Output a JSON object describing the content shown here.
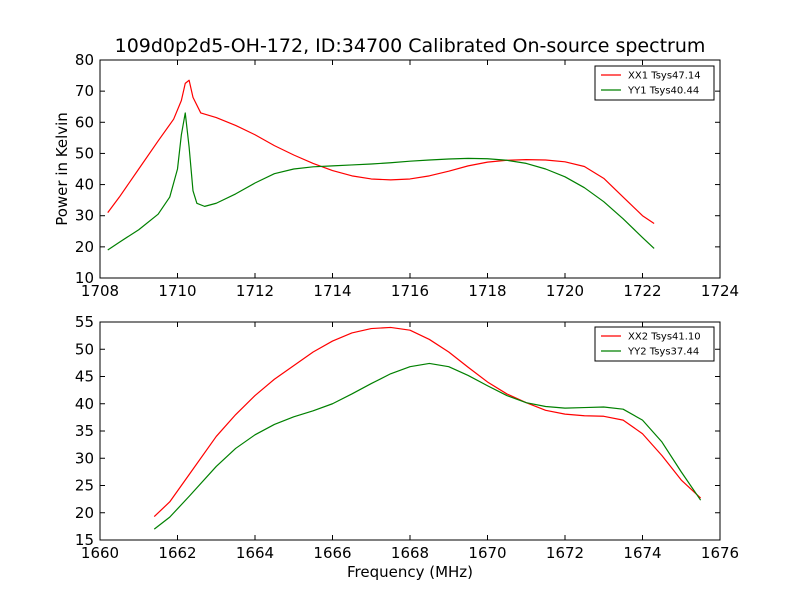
{
  "figure": {
    "title": "109d0p2d5-OH-172, ID:34700 Calibrated On-source spectrum",
    "ylabel": "Power in Kelvin",
    "xlabel": "Frequency (MHz)"
  },
  "chart_data": [
    {
      "type": "line",
      "title": "109d0p2d5-OH-172, ID:34700 Calibrated On-source spectrum",
      "xlabel": "",
      "ylabel": "Power in Kelvin",
      "xlim": [
        1708,
        1724
      ],
      "ylim": [
        10,
        80
      ],
      "xticks": [
        1708,
        1710,
        1712,
        1714,
        1716,
        1718,
        1720,
        1722,
        1724
      ],
      "yticks": [
        10,
        20,
        30,
        40,
        50,
        60,
        70,
        80
      ],
      "grid": false,
      "legend": "top-right",
      "series": [
        {
          "name": "XX1 Tsys47.14",
          "color": "#ff0000",
          "x": [
            1708.2,
            1708.5,
            1709.0,
            1709.5,
            1709.9,
            1710.1,
            1710.2,
            1710.3,
            1710.4,
            1710.6,
            1711.0,
            1711.5,
            1712.0,
            1712.5,
            1713.0,
            1713.5,
            1714.0,
            1714.5,
            1715.0,
            1715.5,
            1716.0,
            1716.5,
            1717.0,
            1717.5,
            1718.0,
            1718.5,
            1719.0,
            1719.5,
            1720.0,
            1720.5,
            1721.0,
            1721.5,
            1722.0,
            1722.3
          ],
          "y": [
            31.0,
            36.0,
            45.0,
            54.0,
            61.0,
            67.0,
            72.5,
            73.5,
            68.0,
            63.0,
            61.5,
            59.0,
            56.0,
            52.5,
            49.5,
            46.8,
            44.5,
            42.8,
            41.8,
            41.5,
            41.8,
            42.8,
            44.3,
            46.0,
            47.2,
            47.8,
            48.0,
            47.9,
            47.3,
            45.8,
            42.0,
            36.0,
            30.0,
            27.5
          ]
        },
        {
          "name": "YY1 Tsys40.44",
          "color": "#008000",
          "x": [
            1708.2,
            1708.5,
            1709.0,
            1709.5,
            1709.8,
            1710.0,
            1710.1,
            1710.2,
            1710.3,
            1710.4,
            1710.5,
            1710.7,
            1711.0,
            1711.5,
            1712.0,
            1712.5,
            1713.0,
            1713.5,
            1714.0,
            1714.5,
            1715.0,
            1715.5,
            1716.0,
            1716.5,
            1717.0,
            1717.5,
            1718.0,
            1718.5,
            1719.0,
            1719.5,
            1720.0,
            1720.5,
            1721.0,
            1721.5,
            1722.0,
            1722.3
          ],
          "y": [
            19.0,
            21.5,
            25.5,
            30.5,
            36.0,
            45.0,
            56.0,
            63.0,
            52.0,
            38.0,
            34.0,
            33.0,
            34.0,
            37.0,
            40.5,
            43.5,
            45.0,
            45.7,
            46.0,
            46.3,
            46.6,
            47.0,
            47.5,
            47.9,
            48.2,
            48.4,
            48.3,
            47.8,
            46.8,
            45.0,
            42.5,
            39.0,
            34.5,
            29.0,
            23.0,
            19.5
          ]
        }
      ]
    },
    {
      "type": "line",
      "title": "",
      "xlabel": "Frequency (MHz)",
      "ylabel": "",
      "xlim": [
        1660,
        1676
      ],
      "ylim": [
        15,
        55
      ],
      "xticks": [
        1660,
        1662,
        1664,
        1666,
        1668,
        1670,
        1672,
        1674,
        1676
      ],
      "yticks": [
        15,
        20,
        25,
        30,
        35,
        40,
        45,
        50,
        55
      ],
      "grid": false,
      "legend": "top-right",
      "series": [
        {
          "name": "XX2 Tsys41.10",
          "color": "#ff0000",
          "x": [
            1661.4,
            1661.8,
            1662.3,
            1663.0,
            1663.5,
            1664.0,
            1664.5,
            1665.0,
            1665.5,
            1666.0,
            1666.5,
            1667.0,
            1667.5,
            1668.0,
            1668.5,
            1669.0,
            1669.5,
            1670.0,
            1670.5,
            1671.0,
            1671.5,
            1672.0,
            1672.5,
            1673.0,
            1673.5,
            1674.0,
            1674.5,
            1675.0,
            1675.5
          ],
          "y": [
            19.3,
            22.0,
            27.0,
            34.0,
            38.0,
            41.5,
            44.5,
            47.0,
            49.5,
            51.5,
            53.0,
            53.8,
            54.0,
            53.5,
            51.8,
            49.5,
            46.7,
            44.0,
            41.8,
            40.2,
            38.8,
            38.1,
            37.8,
            37.7,
            37.0,
            34.5,
            30.5,
            26.0,
            22.7
          ]
        },
        {
          "name": "YY2 Tsys37.44",
          "color": "#008000",
          "x": [
            1661.4,
            1661.8,
            1662.3,
            1663.0,
            1663.5,
            1664.0,
            1664.5,
            1665.0,
            1665.5,
            1666.0,
            1666.5,
            1667.0,
            1667.5,
            1668.0,
            1668.5,
            1669.0,
            1669.5,
            1670.0,
            1670.5,
            1671.0,
            1671.5,
            1672.0,
            1672.5,
            1673.0,
            1673.5,
            1674.0,
            1674.5,
            1675.0,
            1675.5
          ],
          "y": [
            17.0,
            19.2,
            23.0,
            28.5,
            31.8,
            34.3,
            36.2,
            37.6,
            38.7,
            40.0,
            41.8,
            43.7,
            45.5,
            46.8,
            47.4,
            46.8,
            45.2,
            43.3,
            41.5,
            40.2,
            39.5,
            39.2,
            39.3,
            39.4,
            39.0,
            37.0,
            33.0,
            27.5,
            22.3
          ]
        }
      ]
    }
  ]
}
